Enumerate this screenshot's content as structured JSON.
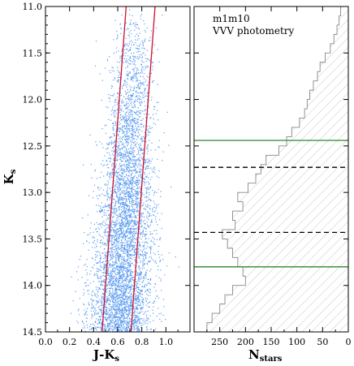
{
  "chart_data": [
    {
      "type": "scatter",
      "title": "",
      "xlabel_main": "J-K",
      "xlabel_sub": "s",
      "ylabel_main": "K",
      "ylabel_sub": "s",
      "xlim": [
        0.0,
        1.2
      ],
      "ylim": [
        14.5,
        11.0
      ],
      "xticks": [
        0.0,
        0.2,
        0.4,
        0.6,
        0.8,
        1.0
      ],
      "xtick_labels": [
        "0.0",
        "0.2",
        "0.4",
        "0.6",
        "0.8",
        "1.0"
      ],
      "yticks": [
        11.0,
        11.5,
        12.0,
        12.5,
        13.0,
        13.5,
        14.0,
        14.5
      ],
      "ytick_labels": [
        "11.0",
        "11.5",
        "12.0",
        "12.5",
        "13.0",
        "13.5",
        "14.0",
        "14.5"
      ],
      "point_color": "#5b9cf0",
      "density_ridge": {
        "description_points": [
          [
            11.0,
            0.74
          ],
          [
            11.5,
            0.73
          ],
          [
            12.0,
            0.71
          ],
          [
            12.5,
            0.69
          ],
          [
            13.0,
            0.67
          ],
          [
            13.5,
            0.65
          ],
          [
            14.0,
            0.63
          ],
          [
            14.5,
            0.61
          ]
        ],
        "spread_jk": 0.12
      },
      "boundary_lines": {
        "color": "#d0102a",
        "left": [
          [
            11.0,
            0.67
          ],
          [
            14.5,
            0.47
          ]
        ],
        "right": [
          [
            11.0,
            0.91
          ],
          [
            14.5,
            0.71
          ]
        ]
      }
    },
    {
      "type": "histogram",
      "orientation": "horizontal",
      "xlabel_main": "N",
      "xlabel_sub": "stars",
      "annotation_lines": [
        "m1m10",
        "VVV photometry"
      ],
      "xlim": [
        300,
        0
      ],
      "ylim": [
        14.5,
        11.0
      ],
      "xticks": [
        250,
        200,
        150,
        100,
        50,
        0
      ],
      "xtick_labels": [
        "250",
        "200",
        "150",
        "100",
        "50",
        "0"
      ],
      "bin_edges_start": 11.0,
      "bin_width": 0.1,
      "counts": [
        15,
        18,
        22,
        28,
        35,
        45,
        55,
        60,
        68,
        75,
        80,
        85,
        95,
        110,
        120,
        135,
        160,
        170,
        180,
        195,
        215,
        205,
        225,
        220,
        245,
        235,
        225,
        215,
        205,
        200,
        225,
        240,
        250,
        265,
        275
      ],
      "hatch_color": "#bbbbbb",
      "outline_color": "#888888",
      "hlines": [
        {
          "y": 12.44,
          "style": "solid",
          "color": "#2a8a2a"
        },
        {
          "y": 12.73,
          "style": "dashed",
          "color": "#000000"
        },
        {
          "y": 13.43,
          "style": "dashed",
          "color": "#000000"
        },
        {
          "y": 13.8,
          "style": "solid",
          "color": "#2a8a2a"
        }
      ]
    }
  ]
}
